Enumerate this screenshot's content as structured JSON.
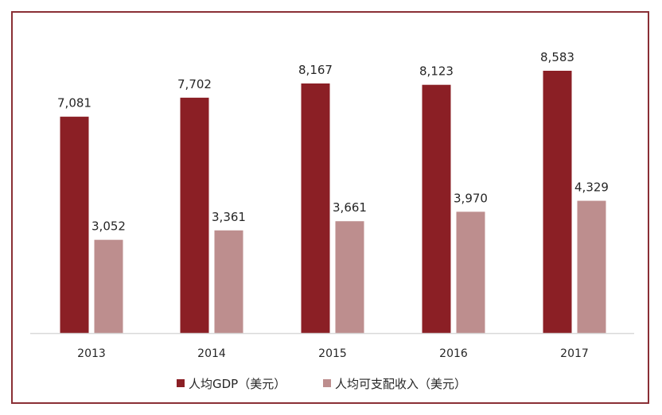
{
  "chart_data": {
    "type": "bar",
    "categories": [
      "2013",
      "2014",
      "2015",
      "2016",
      "2017"
    ],
    "series": [
      {
        "name": "人均GDP（美元）",
        "values": [
          7081,
          7702,
          8167,
          8123,
          8583
        ],
        "labels": [
          "7,081",
          "7,702",
          "8,167",
          "8,123",
          "8,583"
        ],
        "color": "#8b1f25"
      },
      {
        "name": "人均可支配收入（美元）",
        "values": [
          3052,
          3361,
          3661,
          3970,
          4329
        ],
        "labels": [
          "3,052",
          "3,361",
          "3,661",
          "3,970",
          "4,329"
        ],
        "color": "#bd8e8e"
      }
    ],
    "title": "",
    "xlabel": "",
    "ylabel": "",
    "ylim": [
      0,
      9000
    ],
    "grid": false,
    "legend": "bottom-center"
  },
  "frame_color": "#8a2f35"
}
